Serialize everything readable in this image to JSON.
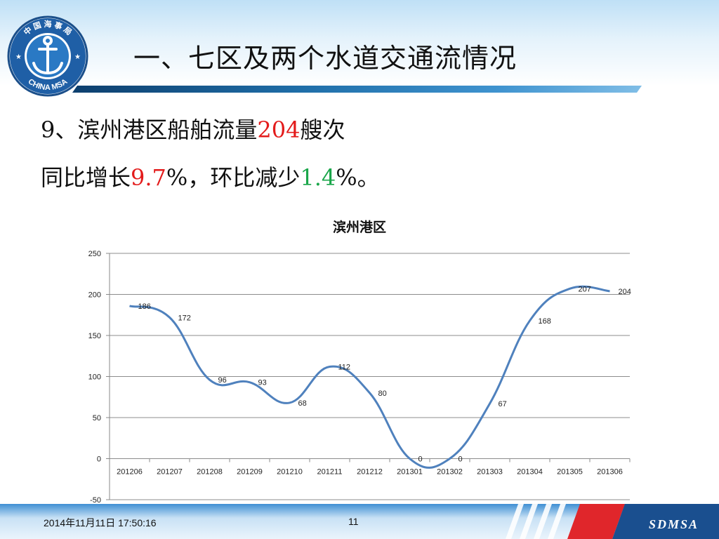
{
  "slide": {
    "title": "一、七区及两个水道交通流情况",
    "line1": {
      "prefix": "9、滨州港区船舶流量",
      "count": "204",
      "suffix": "艘次"
    },
    "line2": {
      "prefix": "同比增长",
      "yoy": "9.7",
      "middle": "%，环比减少",
      "mom": "1.4",
      "suffix": "%。"
    }
  },
  "logo": {
    "top_text": "中 国 海 事 局",
    "bottom_text": "CHINA MSA"
  },
  "footer": {
    "date": "2014年11月11日  17:50:16",
    "page": "11",
    "brand": "SDMSA"
  },
  "colors": {
    "line": "#4f81bd",
    "highlight_red": "#e31b1b",
    "highlight_green": "#1aa64a"
  },
  "chart_data": {
    "type": "line",
    "title": "滨州港区",
    "categories": [
      "201206",
      "201207",
      "201208",
      "201209",
      "201210",
      "201211",
      "201212",
      "201301",
      "201302",
      "201303",
      "201304",
      "201305",
      "201306"
    ],
    "series": [
      {
        "values": [
          186,
          172,
          96,
          93,
          68,
          112,
          80,
          0,
          0,
          67,
          168,
          207,
          204
        ]
      }
    ],
    "ylim": [
      -50,
      250
    ],
    "yticks": [
      -50,
      0,
      50,
      100,
      150,
      200,
      250
    ],
    "grid": true,
    "smooth": true,
    "data_labels": true
  }
}
